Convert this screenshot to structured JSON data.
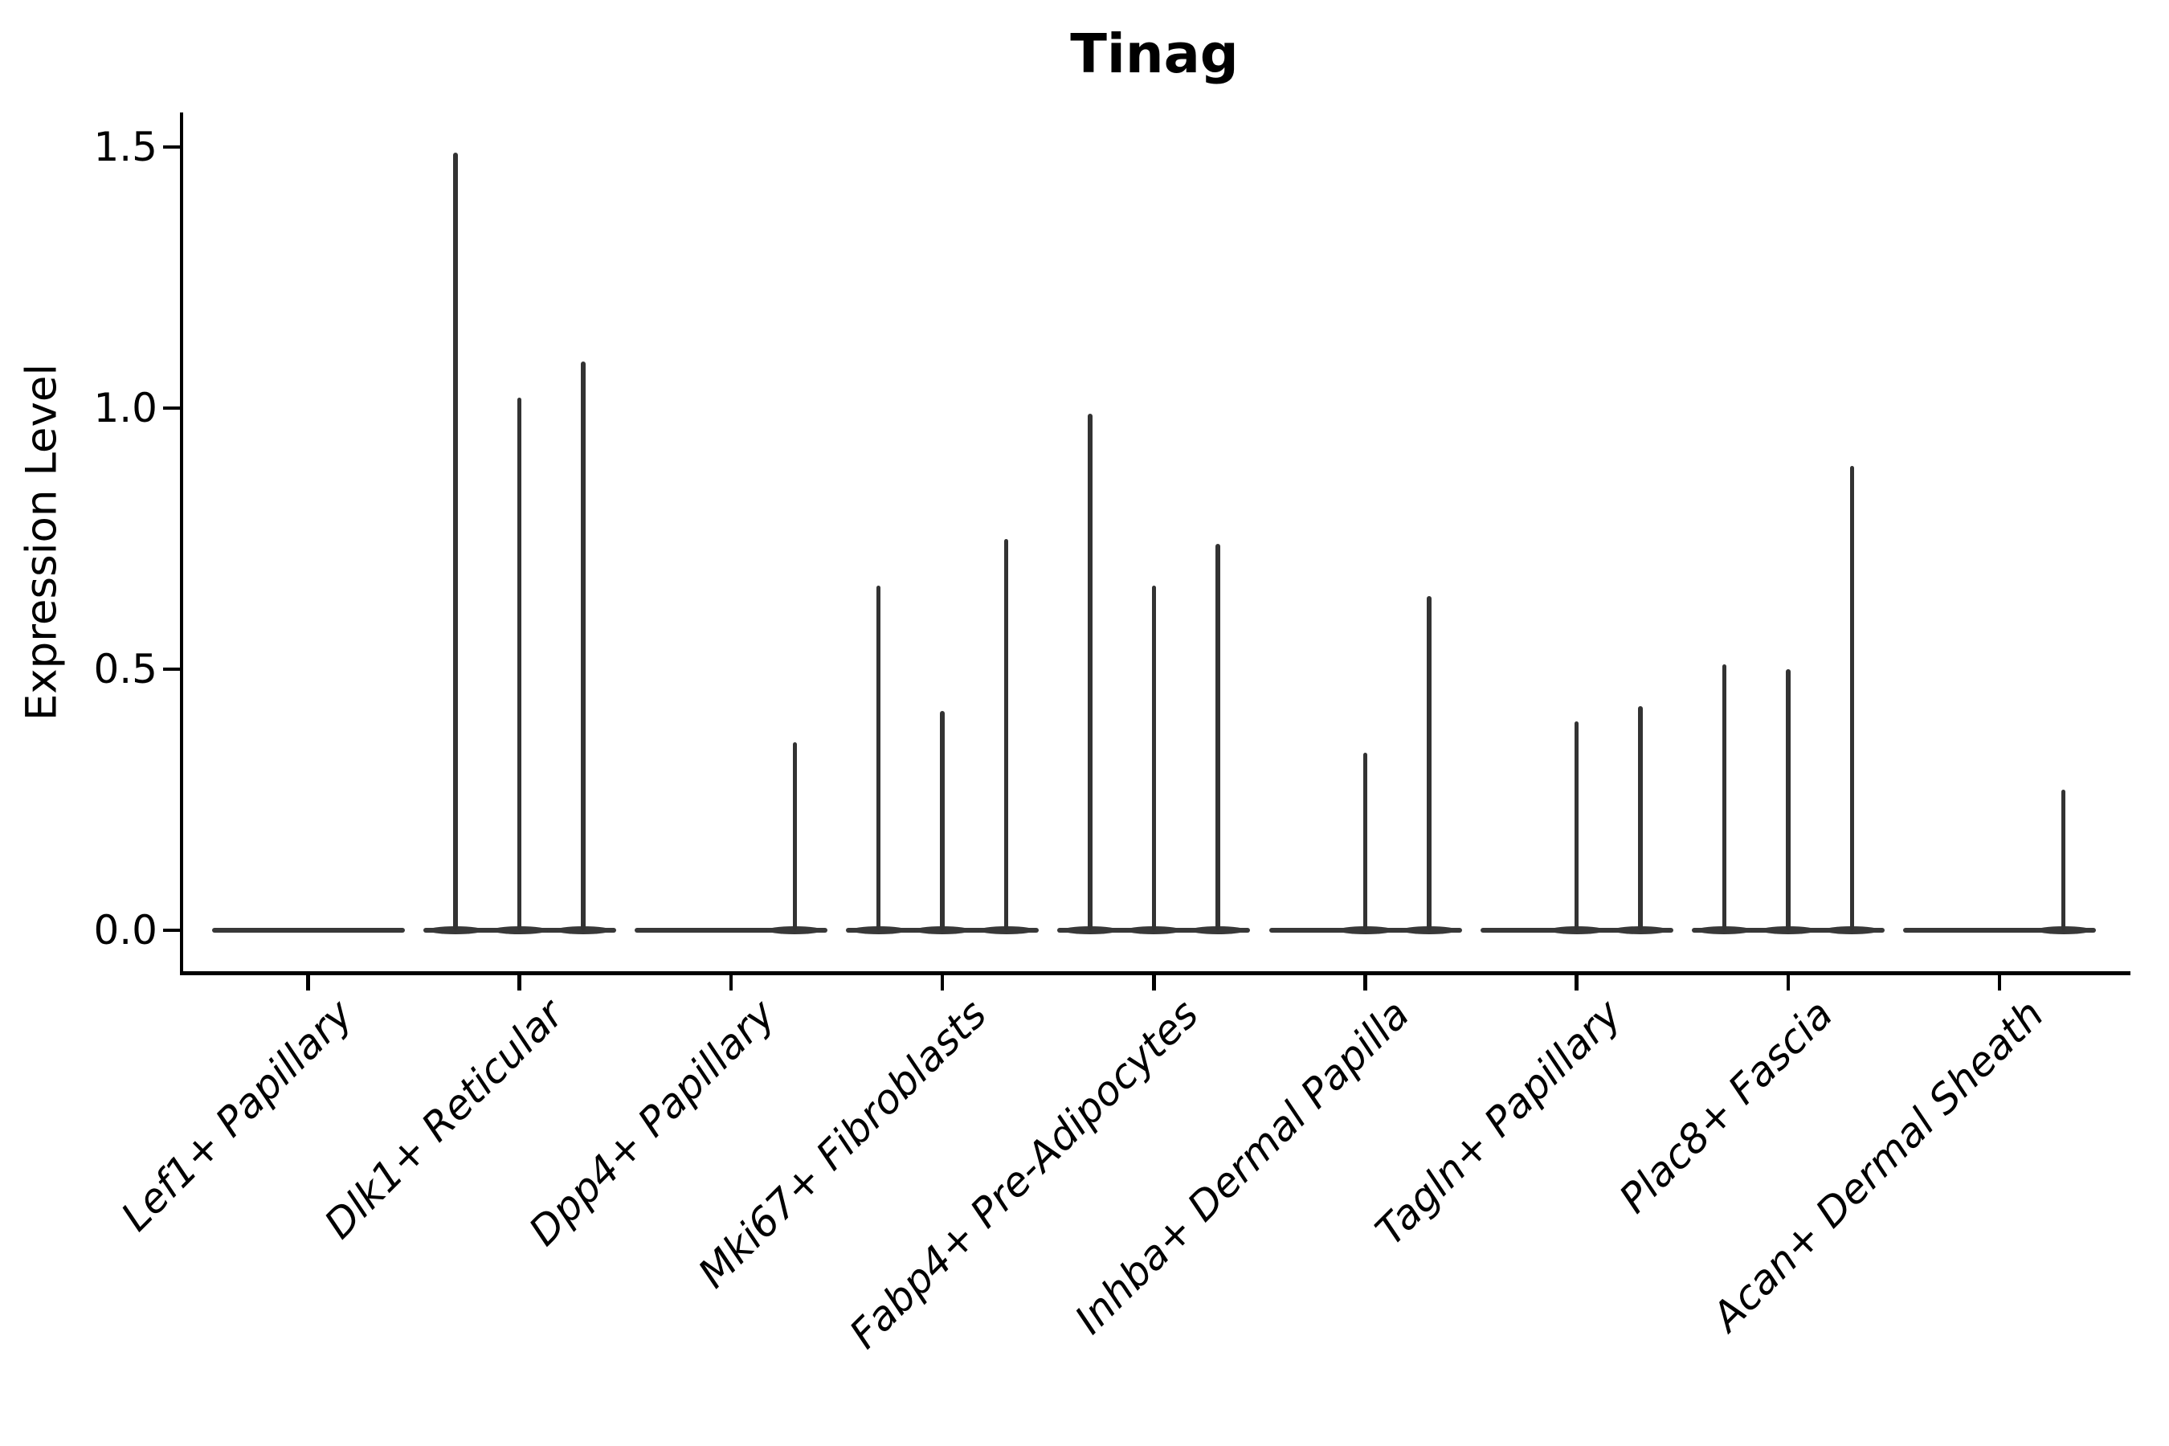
{
  "title": "Tinag",
  "axes": {
    "ylabel": "Expression Level",
    "ytick_labels": [
      "1.5",
      "1.0",
      "0.5",
      "0.0"
    ],
    "xtick_labels": [
      "Lef1+ Papillary",
      "Dlk1+ Reticular",
      "Dpp4+ Papillary",
      "Mki67+ Fibroblasts",
      "Fabp4+ Pre-Adipocytes",
      "Inhba+ Dermal Papilla",
      "Tagln+ Papillary",
      "Plac8+ Fascia",
      "Acan+ Dermal Sheath"
    ]
  },
  "colors": {
    "violin_stroke": "#333333",
    "axis": "#000000",
    "background": "#ffffff"
  },
  "chart_data": {
    "type": "violin",
    "title": "Tinag",
    "xlabel": "",
    "ylabel": "Expression Level",
    "ylim": [
      -0.08,
      1.57
    ],
    "yticks": [
      0.0,
      0.5,
      1.0,
      1.5
    ],
    "grid": false,
    "legend_position": "none",
    "categories": [
      "Lef1+ Papillary",
      "Dlk1+ Reticular",
      "Dpp4+ Papillary",
      "Mki67+ Fibroblasts",
      "Fabp4+ Pre-Adipocytes",
      "Inhba+ Dermal Papilla",
      "Tagln+ Papillary",
      "Plac8+ Fascia",
      "Acan+ Dermal Sheath"
    ],
    "violins_per_category": 3,
    "series": [
      {
        "category": "Lef1+ Papillary",
        "spike_maxima": [
          0,
          0,
          0
        ]
      },
      {
        "category": "Dlk1+ Reticular",
        "spike_maxima": [
          1.49,
          1.02,
          1.09
        ]
      },
      {
        "category": "Dpp4+ Papillary",
        "spike_maxima": [
          0,
          0,
          0.36
        ]
      },
      {
        "category": "Mki67+ Fibroblasts",
        "spike_maxima": [
          0.66,
          0.42,
          0.75
        ]
      },
      {
        "category": "Fabp4+ Pre-Adipocytes",
        "spike_maxima": [
          0.99,
          0.66,
          0.74
        ]
      },
      {
        "category": "Inhba+ Dermal Papilla",
        "spike_maxima": [
          0,
          0.34,
          0.64
        ]
      },
      {
        "category": "Tagln+ Papillary",
        "spike_maxima": [
          0,
          0.4,
          0.43
        ]
      },
      {
        "category": "Plac8+ Fascia",
        "spike_maxima": [
          0.51,
          0.5,
          0.89
        ]
      },
      {
        "category": "Acan+ Dermal Sheath",
        "spike_maxima": [
          0,
          0,
          0.27
        ]
      }
    ]
  }
}
